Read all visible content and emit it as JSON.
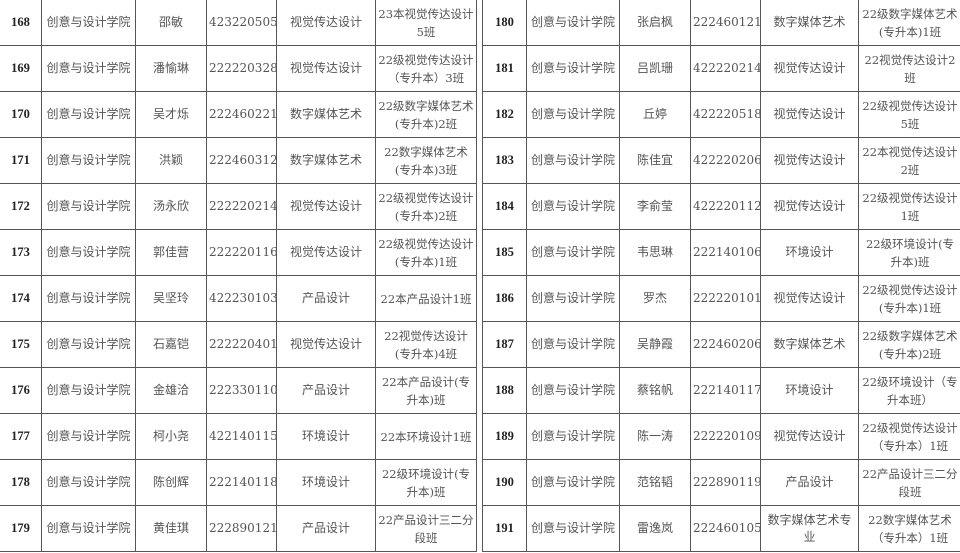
{
  "tables": [
    {
      "id": "left",
      "rows": [
        [
          "168",
          "创意与设计学院",
          "邵敏",
          "423220505",
          "视觉传达设计",
          "23本视觉传达设计5班"
        ],
        [
          "169",
          "创意与设计学院",
          "潘愉琳",
          "222220328",
          "视觉传达设计",
          "22级视觉传达设计（专升本）3班"
        ],
        [
          "170",
          "创意与设计学院",
          "吴才烁",
          "222460221",
          "数字媒体艺术",
          "22级数字媒体艺术(专升本)2班"
        ],
        [
          "171",
          "创意与设计学院",
          "洪颖",
          "222460312",
          "数字媒体艺术",
          "22数字媒体艺术(专升本)3班"
        ],
        [
          "172",
          "创意与设计学院",
          "汤永欣",
          "222220214",
          "视觉传达设计",
          "22级视觉传达设计(专升本)2班"
        ],
        [
          "173",
          "创意与设计学院",
          "郭佳营",
          "222220116",
          "视觉传达设计",
          "22级视觉传达设计(专升本)1班"
        ],
        [
          "174",
          "创意与设计学院",
          "吴坚玲",
          "422230103",
          "产品设计",
          "22本产品设计1班"
        ],
        [
          "175",
          "创意与设计学院",
          "石嘉铠",
          "222220401",
          "视觉传达设计",
          "22视觉传达设计(专升本)4班"
        ],
        [
          "176",
          "创意与设计学院",
          "金雄洽",
          "222330110",
          "产品设计",
          "22本产品设计(专升本)班"
        ],
        [
          "177",
          "创意与设计学院",
          "柯小尧",
          "422140115",
          "环境设计",
          "22本环境设计1班"
        ],
        [
          "178",
          "创意与设计学院",
          "陈创辉",
          "222140118",
          "环境设计",
          "22级环境设计(专升本)班"
        ],
        [
          "179",
          "创意与设计学院",
          "黄佳琪",
          "222890121",
          "产品设计",
          "22产品设计三二分段班"
        ]
      ]
    },
    {
      "id": "right",
      "rows": [
        [
          "180",
          "创意与设计学院",
          "张启枫",
          "222460121",
          "数字媒体艺术",
          "22级数字媒体艺术(专升本)1班"
        ],
        [
          "181",
          "创意与设计学院",
          "吕凯珊",
          "422220214",
          "视觉传达设计",
          "22视觉传达设计2班"
        ],
        [
          "182",
          "创意与设计学院",
          "丘婷",
          "422220518",
          "视觉传达设计",
          "22级视觉传达设计5班"
        ],
        [
          "183",
          "创意与设计学院",
          "陈佳宜",
          "422220206",
          "视觉传达设计",
          "22本视觉传达设计2班"
        ],
        [
          "184",
          "创意与设计学院",
          "李俞莹",
          "422220112",
          "视觉传达设计",
          "22级视觉传达设计1班"
        ],
        [
          "185",
          "创意与设计学院",
          "韦思琳",
          "222140106",
          "环境设计",
          "22级环境设计(专升本)班"
        ],
        [
          "186",
          "创意与设计学院",
          "罗杰",
          "222220101",
          "视觉传达设计",
          "22级视觉传达设计(专升本)1班"
        ],
        [
          "187",
          "创意与设计学院",
          "吴静霞",
          "222460206",
          "数字媒体艺术",
          "22级数字媒体艺术(专升本)2班"
        ],
        [
          "188",
          "创意与设计学院",
          "蔡铭帆",
          "222140117",
          "环境设计",
          "22级环境设计（专升本班）"
        ],
        [
          "189",
          "创意与设计学院",
          "陈一涛",
          "222220109",
          "视觉传达设计",
          "22级视觉传达设计（专升本）1班"
        ],
        [
          "190",
          "创意与设计学院",
          "范铭韬",
          "222890119",
          "产品设计",
          "22产品设计三二分段班"
        ],
        [
          "191",
          "创意与设计学院",
          "雷逸岚",
          "222460105",
          "数字媒体艺术专业",
          "22数字媒体艺术（专升本）1班"
        ]
      ]
    }
  ]
}
